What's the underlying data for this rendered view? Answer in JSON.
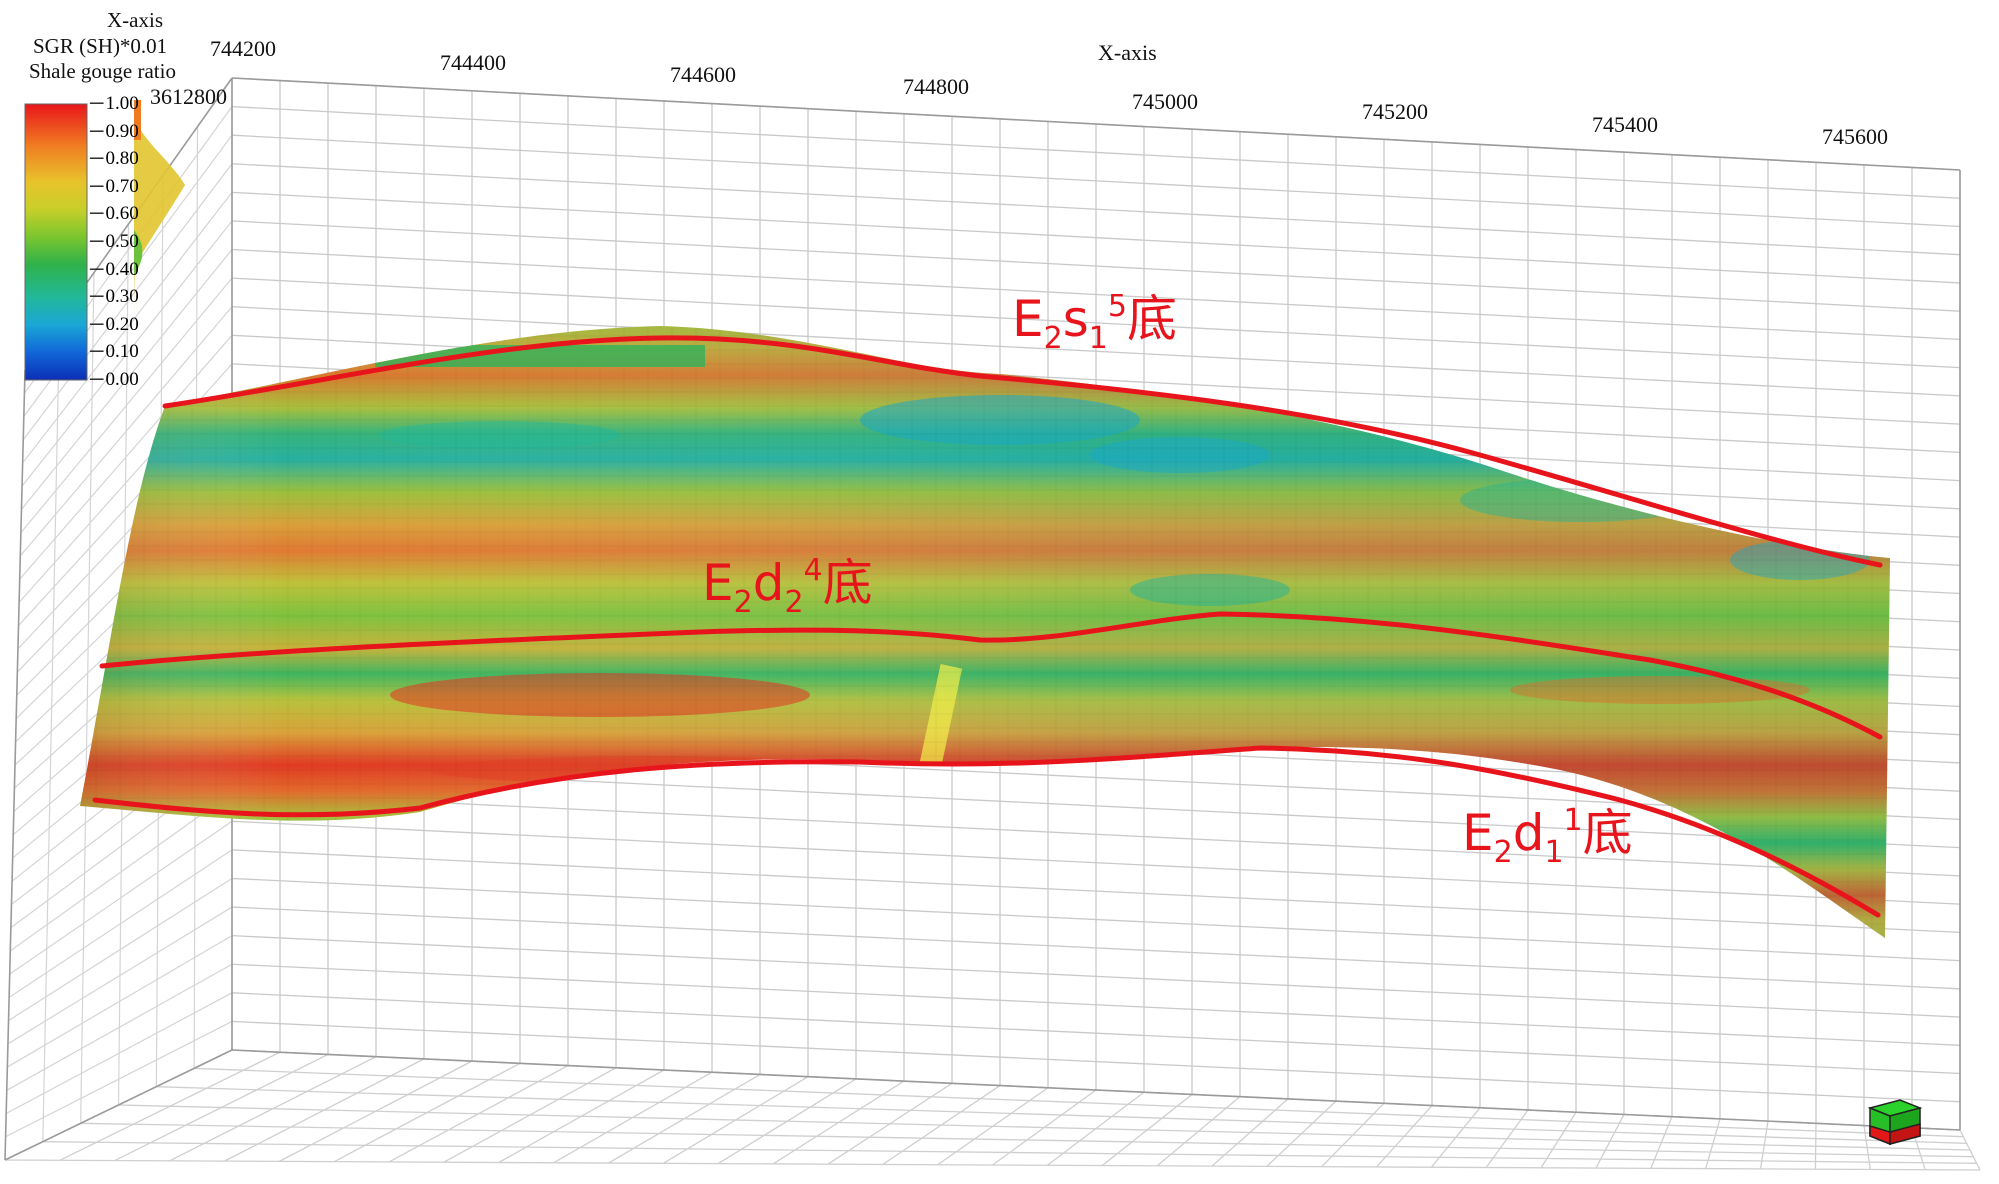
{
  "legend": {
    "title_lines": [
      "X-axis",
      "SGR (SH)*0.01",
      "Shale gouge ratio"
    ],
    "colorbar_ticks": [
      "1.00",
      "0.90",
      "0.80",
      "0.70",
      "0.60",
      "0.50",
      "0.40",
      "0.30",
      "0.20",
      "0.10",
      "0.00"
    ],
    "colors": [
      "#e8151b",
      "#f07c22",
      "#e8c22b",
      "#c8cf2a",
      "#7cc62e",
      "#2fb24a",
      "#22b89a",
      "#1aa7d6",
      "#1166d8",
      "#0b2fb5"
    ]
  },
  "axes": {
    "x_label_top_left": "X-axis",
    "x_label_top_center": "X-axis",
    "y_tick": "3612800",
    "x_ticks": [
      "744200",
      "744400",
      "744600",
      "744800",
      "745000",
      "745200",
      "745400",
      "745600"
    ]
  },
  "horizons": [
    {
      "id": "e2s1-5",
      "base": "E",
      "sub1": "2",
      "letter": "s",
      "sub2": "1",
      "sup": "5",
      "suffix": "底"
    },
    {
      "id": "e2d2-4",
      "base": "E",
      "sub1": "2",
      "letter": "d",
      "sub2": "2",
      "sup": "4",
      "suffix": "底"
    },
    {
      "id": "e2d1-1",
      "base": "E",
      "sub1": "2",
      "letter": "d",
      "sub2": "1",
      "sup": "1",
      "suffix": "底"
    }
  ],
  "horizon_color": "#e8141c",
  "icons": {
    "orientation_cube": "orientation-cube-icon"
  }
}
